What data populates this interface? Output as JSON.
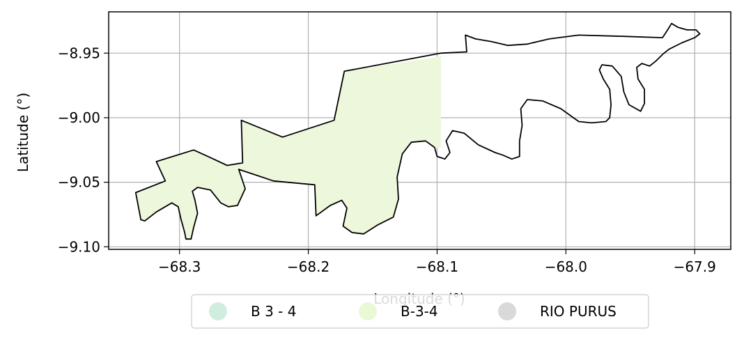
{
  "chart_data": {
    "type": "map",
    "xlabel": "Longitude (°)",
    "ylabel": "Latitude (°)",
    "xlim": [
      -68.355,
      -67.872
    ],
    "ylim": [
      -9.102,
      -8.918
    ],
    "grid": true,
    "x_ticks": [
      {
        "value": -68.3,
        "label": "−68.3"
      },
      {
        "value": -68.2,
        "label": "−68.2"
      },
      {
        "value": -68.1,
        "label": "−68.1"
      },
      {
        "value": -68.0,
        "label": "−68.0"
      },
      {
        "value": -67.9,
        "label": "−67.9"
      }
    ],
    "y_ticks": [
      {
        "value": -8.95,
        "label": "−8.95"
      },
      {
        "value": -9.0,
        "label": "−9.00"
      },
      {
        "value": -9.05,
        "label": "−9.05"
      },
      {
        "value": -9.1,
        "label": "−9.10"
      }
    ],
    "legend": {
      "placement": "bottom-center",
      "entries": [
        {
          "label": "B 3 - 4",
          "color": "#cfeee0"
        },
        {
          "label": "B-3-4",
          "color": "#eaf8d6"
        },
        {
          "label": "RIO PURUS",
          "color": "#d9d9d9"
        }
      ]
    },
    "zones": [
      {
        "name": "B-3-4",
        "fill": "#edf7dc",
        "coords": [
          [
            -68.334,
            -9.058
          ],
          [
            -68.33,
            -9.079
          ],
          [
            -68.327,
            -9.08
          ],
          [
            -68.318,
            -9.073
          ],
          [
            -68.306,
            -9.066
          ],
          [
            -68.301,
            -9.069
          ],
          [
            -68.299,
            -9.078
          ],
          [
            -68.296,
            -9.089
          ],
          [
            -68.295,
            -9.094
          ],
          [
            -68.291,
            -9.094
          ],
          [
            -68.289,
            -9.085
          ],
          [
            -68.286,
            -9.074
          ],
          [
            -68.288,
            -9.064
          ],
          [
            -68.29,
            -9.057
          ],
          [
            -68.286,
            -9.054
          ],
          [
            -68.276,
            -9.056
          ],
          [
            -68.268,
            -9.066
          ],
          [
            -68.262,
            -9.069
          ],
          [
            -68.255,
            -9.068
          ],
          [
            -68.249,
            -9.055
          ],
          [
            -68.254,
            -9.04
          ],
          [
            -68.227,
            -9.049
          ],
          [
            -68.195,
            -9.052
          ],
          [
            -68.194,
            -9.076
          ],
          [
            -68.183,
            -9.068
          ],
          [
            -68.174,
            -9.064
          ],
          [
            -68.17,
            -9.07
          ],
          [
            -68.173,
            -9.084
          ],
          [
            -68.166,
            -9.089
          ],
          [
            -68.157,
            -9.09
          ],
          [
            -68.146,
            -9.083
          ],
          [
            -68.134,
            -9.077
          ],
          [
            -68.13,
            -9.063
          ],
          [
            -68.131,
            -9.046
          ],
          [
            -68.127,
            -9.028
          ],
          [
            -68.12,
            -9.019
          ],
          [
            -68.109,
            -9.018
          ],
          [
            -68.102,
            -9.023
          ],
          [
            -68.097,
            -9.023
          ],
          [
            -68.097,
            -8.953
          ],
          [
            -68.074,
            -8.949
          ],
          [
            -68.172,
            -8.964
          ],
          [
            -68.18,
            -9.002
          ],
          [
            -68.22,
            -9.015
          ],
          [
            -68.252,
            -9.002
          ],
          [
            -68.251,
            -9.035
          ],
          [
            -68.263,
            -9.037
          ],
          [
            -68.278,
            -9.03
          ],
          [
            -68.289,
            -9.025
          ],
          [
            -68.318,
            -9.034
          ],
          [
            -68.311,
            -9.049
          ]
        ]
      }
    ],
    "boundary": [
      [
        -68.334,
        -9.058
      ],
      [
        -68.33,
        -9.079
      ],
      [
        -68.327,
        -9.08
      ],
      [
        -68.318,
        -9.073
      ],
      [
        -68.306,
        -9.066
      ],
      [
        -68.301,
        -9.069
      ],
      [
        -68.299,
        -9.078
      ],
      [
        -68.296,
        -9.089
      ],
      [
        -68.295,
        -9.094
      ],
      [
        -68.291,
        -9.094
      ],
      [
        -68.289,
        -9.085
      ],
      [
        -68.286,
        -9.074
      ],
      [
        -68.288,
        -9.064
      ],
      [
        -68.29,
        -9.057
      ],
      [
        -68.286,
        -9.054
      ],
      [
        -68.276,
        -9.056
      ],
      [
        -68.268,
        -9.066
      ],
      [
        -68.262,
        -9.069
      ],
      [
        -68.255,
        -9.068
      ],
      [
        -68.249,
        -9.055
      ],
      [
        -68.254,
        -9.04
      ],
      [
        -68.227,
        -9.049
      ],
      [
        -68.195,
        -9.052
      ],
      [
        -68.194,
        -9.076
      ],
      [
        -68.183,
        -9.068
      ],
      [
        -68.174,
        -9.064
      ],
      [
        -68.17,
        -9.07
      ],
      [
        -68.173,
        -9.084
      ],
      [
        -68.166,
        -9.089
      ],
      [
        -68.157,
        -9.09
      ],
      [
        -68.146,
        -9.083
      ],
      [
        -68.134,
        -9.077
      ],
      [
        -68.13,
        -9.063
      ],
      [
        -68.131,
        -9.046
      ],
      [
        -68.127,
        -9.028
      ],
      [
        -68.12,
        -9.019
      ],
      [
        -68.109,
        -9.018
      ],
      [
        -68.102,
        -9.023
      ],
      [
        -68.1,
        -9.03
      ],
      [
        -68.094,
        -9.032
      ],
      [
        -68.09,
        -9.027
      ],
      [
        -68.093,
        -9.018
      ],
      [
        -68.088,
        -9.01
      ],
      [
        -68.079,
        -9.012
      ],
      [
        -68.068,
        -9.021
      ],
      [
        -68.055,
        -9.027
      ],
      [
        -68.049,
        -9.029
      ],
      [
        -68.042,
        -9.032
      ],
      [
        -68.036,
        -9.03
      ],
      [
        -68.036,
        -9.018
      ],
      [
        -68.034,
        -9.006
      ],
      [
        -68.035,
        -8.993
      ],
      [
        -68.03,
        -8.986
      ],
      [
        -68.018,
        -8.987
      ],
      [
        -68.004,
        -8.993
      ],
      [
        -67.99,
        -9.003
      ],
      [
        -67.98,
        -9.004
      ],
      [
        -67.969,
        -9.003
      ],
      [
        -67.966,
        -9.0
      ],
      [
        -67.965,
        -8.99
      ],
      [
        -67.966,
        -8.978
      ],
      [
        -67.971,
        -8.97
      ],
      [
        -67.974,
        -8.963
      ],
      [
        -67.972,
        -8.959
      ],
      [
        -67.964,
        -8.96
      ],
      [
        -67.957,
        -8.968
      ],
      [
        -67.955,
        -8.98
      ],
      [
        -67.951,
        -8.99
      ],
      [
        -67.942,
        -8.995
      ],
      [
        -67.939,
        -8.989
      ],
      [
        -67.939,
        -8.978
      ],
      [
        -67.944,
        -8.97
      ],
      [
        -67.945,
        -8.961
      ],
      [
        -67.941,
        -8.958
      ],
      [
        -67.935,
        -8.96
      ],
      [
        -67.93,
        -8.956
      ],
      [
        -67.925,
        -8.951
      ],
      [
        -67.92,
        -8.947
      ],
      [
        -67.91,
        -8.942
      ],
      [
        -67.9,
        -8.938
      ],
      [
        -67.896,
        -8.935
      ],
      [
        -67.899,
        -8.932
      ],
      [
        -67.906,
        -8.932
      ],
      [
        -67.913,
        -8.93
      ],
      [
        -67.918,
        -8.927
      ],
      [
        -67.921,
        -8.932
      ],
      [
        -67.925,
        -8.938
      ],
      [
        -67.955,
        -8.937
      ],
      [
        -67.99,
        -8.936
      ],
      [
        -68.013,
        -8.939
      ],
      [
        -68.03,
        -8.943
      ],
      [
        -68.045,
        -8.944
      ],
      [
        -68.058,
        -8.941
      ],
      [
        -68.07,
        -8.939
      ],
      [
        -68.078,
        -8.936
      ],
      [
        -68.077,
        -8.949
      ],
      [
        -68.097,
        -8.95
      ],
      [
        -68.172,
        -8.964
      ],
      [
        -68.18,
        -9.002
      ],
      [
        -68.22,
        -9.015
      ],
      [
        -68.252,
        -9.002
      ],
      [
        -68.251,
        -9.035
      ],
      [
        -68.263,
        -9.037
      ],
      [
        -68.278,
        -9.03
      ],
      [
        -68.289,
        -9.025
      ],
      [
        -68.318,
        -9.034
      ],
      [
        -68.311,
        -9.049
      ],
      [
        -68.334,
        -9.058
      ]
    ]
  }
}
